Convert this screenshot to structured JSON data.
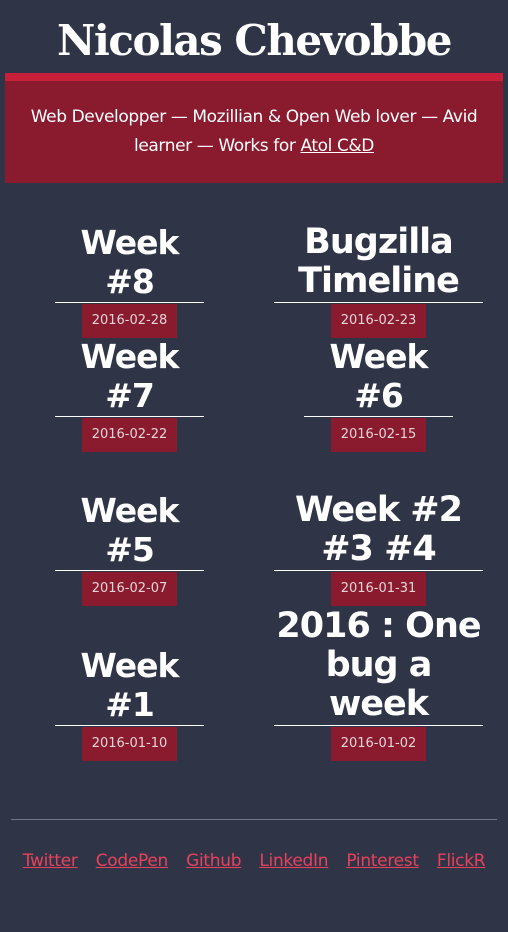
{
  "site": {
    "title": "Nicolas Chevobbe",
    "tagline_prefix": "Web Developper — Mozillian & Open Web lover — Avid learner — Works for ",
    "employer": "Atol C&D"
  },
  "posts": [
    {
      "title": "Week #8",
      "date": "2016-02-28"
    },
    {
      "title": "Bugzilla Timeline",
      "date": "2016-02-23"
    },
    {
      "title": "Week #7",
      "date": "2016-02-22"
    },
    {
      "title": "Week #6",
      "date": "2016-02-15"
    },
    {
      "title": "Week #5",
      "date": "2016-02-07"
    },
    {
      "title": "Week #2 #3 #4",
      "date": "2016-01-31"
    },
    {
      "title": "Week #1",
      "date": "2016-01-10"
    },
    {
      "title": "2016 : One bug a week",
      "date": "2016-01-02"
    }
  ],
  "social_links": [
    "Twitter",
    "CodePen",
    "Github",
    "LinkedIn",
    "Pinterest",
    "FlickR"
  ],
  "colors": {
    "background": "#2f3547",
    "banner": "#8a1a2e",
    "banner_accent": "#c8203b",
    "link": "#e8415c"
  }
}
